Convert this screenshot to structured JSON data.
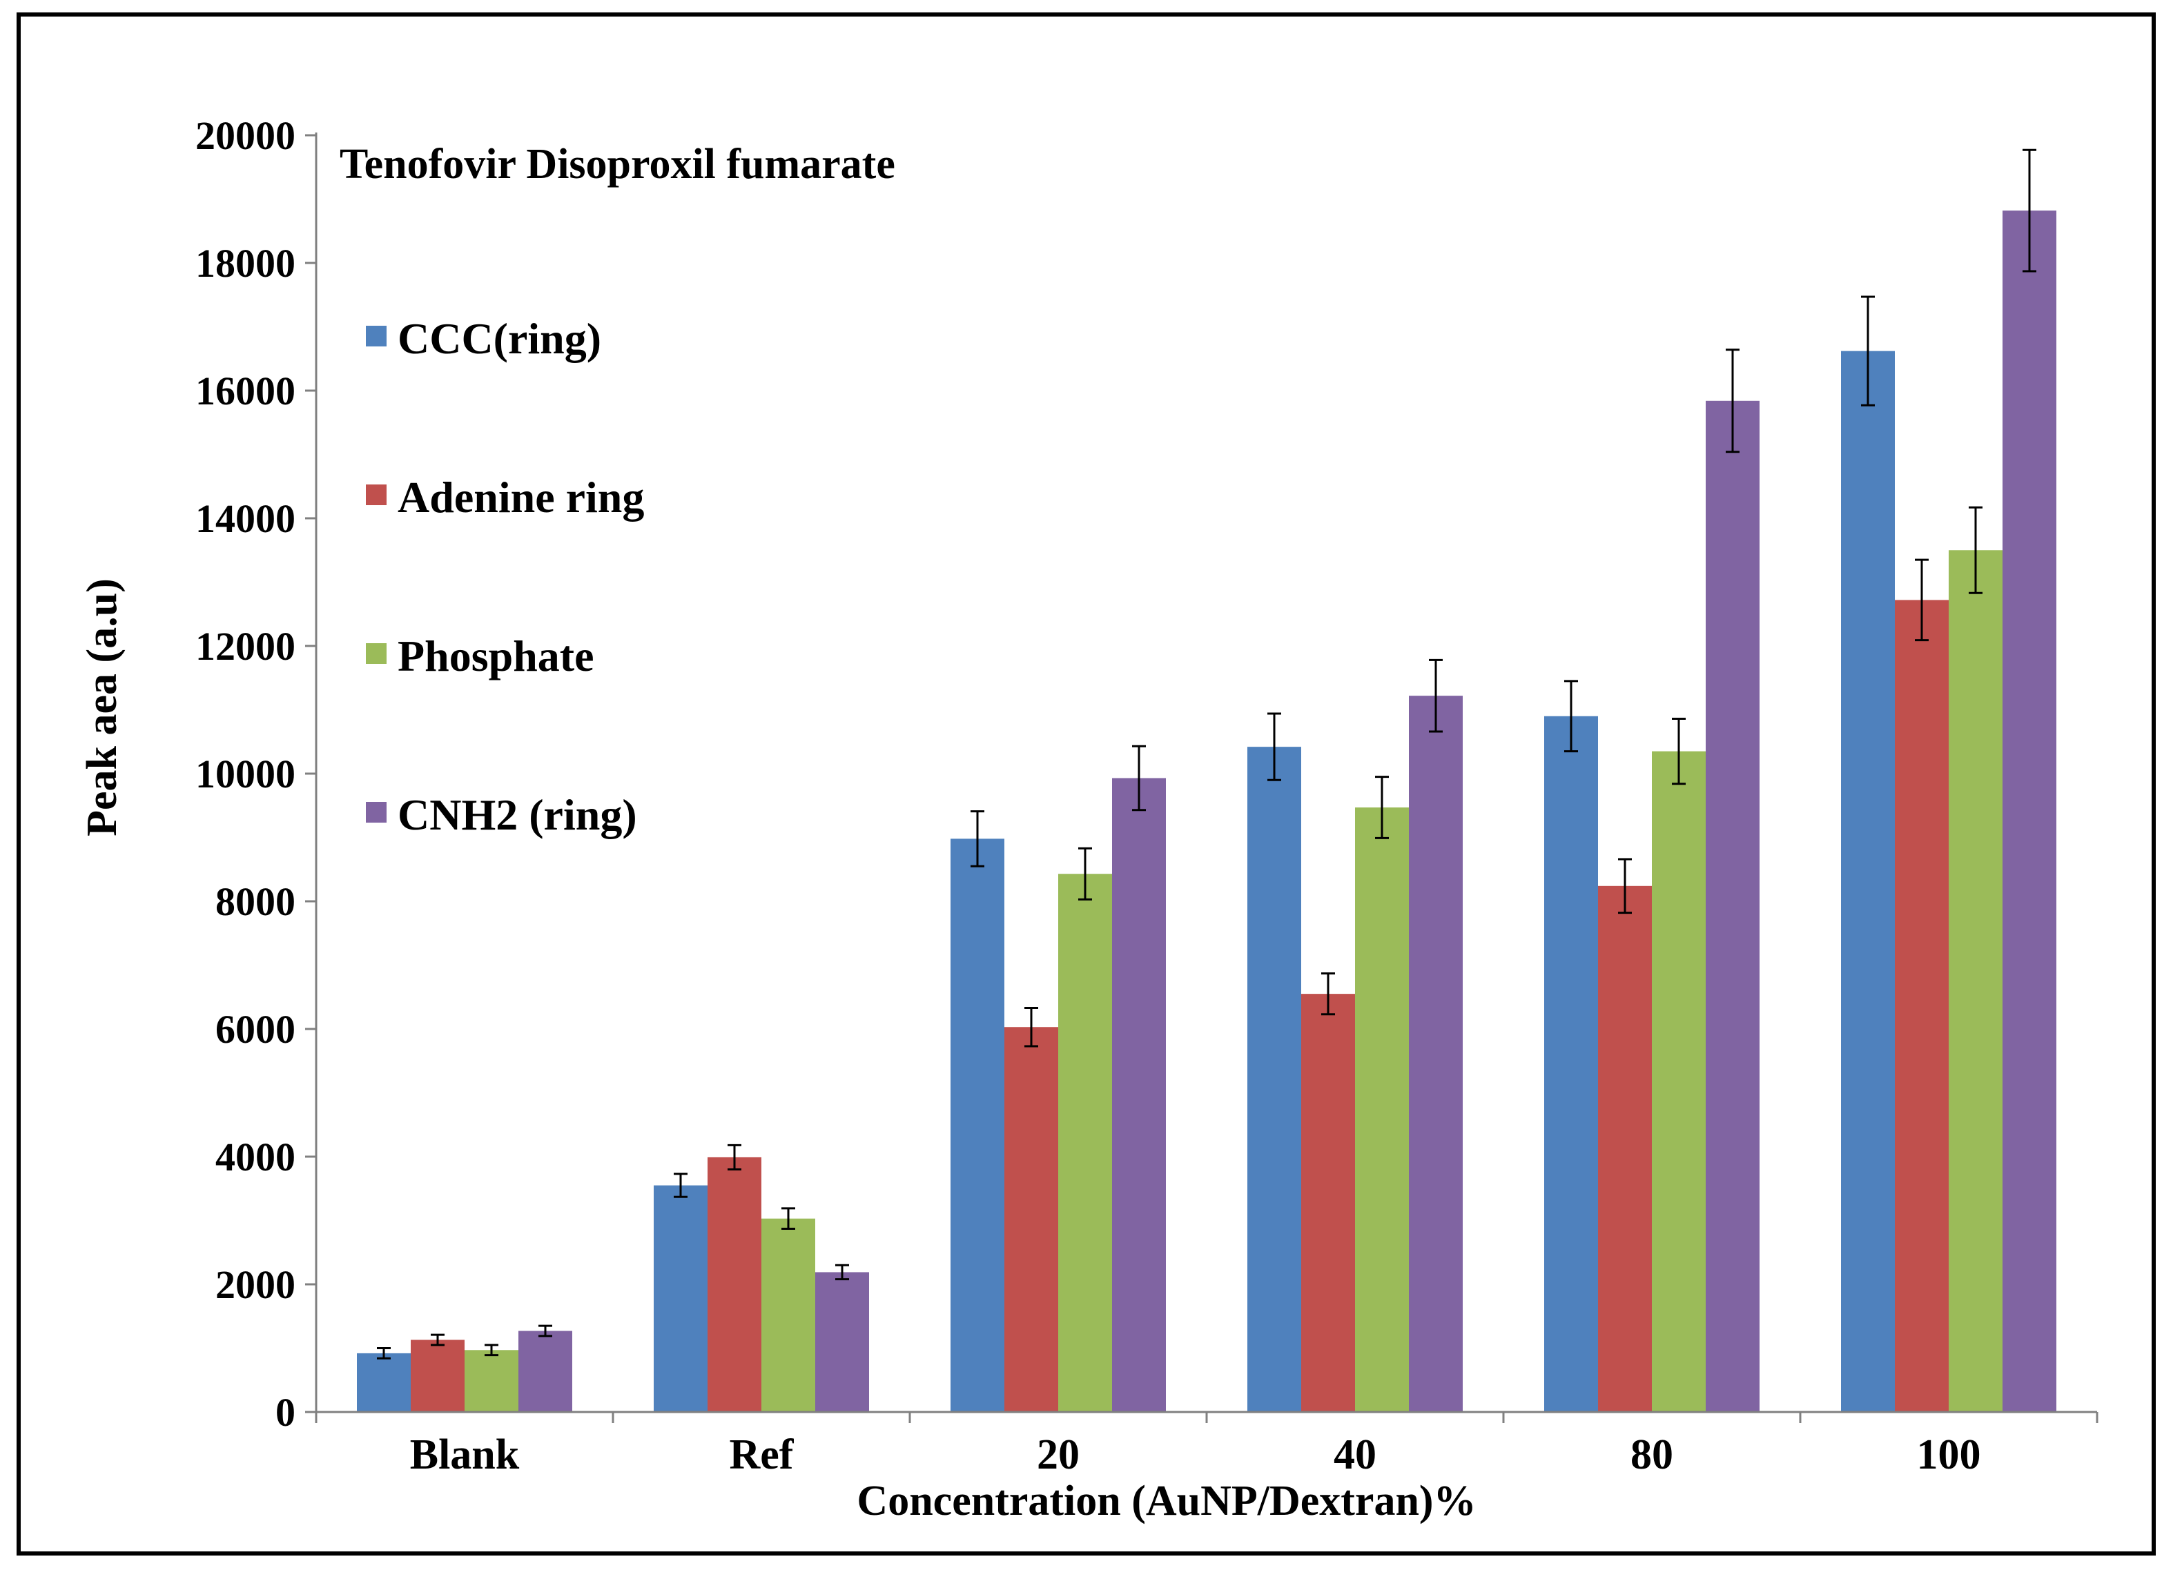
{
  "chart_data": {
    "type": "bar",
    "title": "Tenofovir Disoproxil fumarate",
    "xlabel": "Concentration (AuNP/Dextran)%",
    "ylabel": "Peak aea (a.u)",
    "ylim": [
      0,
      20000
    ],
    "yticks": [
      0,
      2000,
      4000,
      6000,
      8000,
      10000,
      12000,
      14000,
      16000,
      18000,
      20000
    ],
    "categories": [
      "Blank",
      "Ref",
      "20",
      "40",
      "80",
      "100"
    ],
    "legend_position": "left",
    "series": [
      {
        "name": "CCC(ring)",
        "color": "#4F81BD",
        "values": [
          920,
          3550,
          8980,
          10420,
          10900,
          16620
        ],
        "errors": [
          80,
          180,
          430,
          520,
          550,
          850
        ]
      },
      {
        "name": "Adenine ring",
        "color": "#C0504D",
        "values": [
          1130,
          3990,
          6030,
          6550,
          8240,
          12720
        ],
        "errors": [
          80,
          190,
          300,
          320,
          420,
          630
        ]
      },
      {
        "name": "Phosphate",
        "color": "#9BBB59",
        "values": [
          970,
          3030,
          8430,
          9470,
          10350,
          13500
        ],
        "errors": [
          80,
          160,
          400,
          480,
          510,
          670
        ]
      },
      {
        "name": "CNH2 (ring)",
        "color": "#8064A2",
        "values": [
          1270,
          2190,
          9930,
          11220,
          15840,
          18820
        ],
        "errors": [
          80,
          110,
          500,
          560,
          800,
          950
        ]
      }
    ]
  }
}
